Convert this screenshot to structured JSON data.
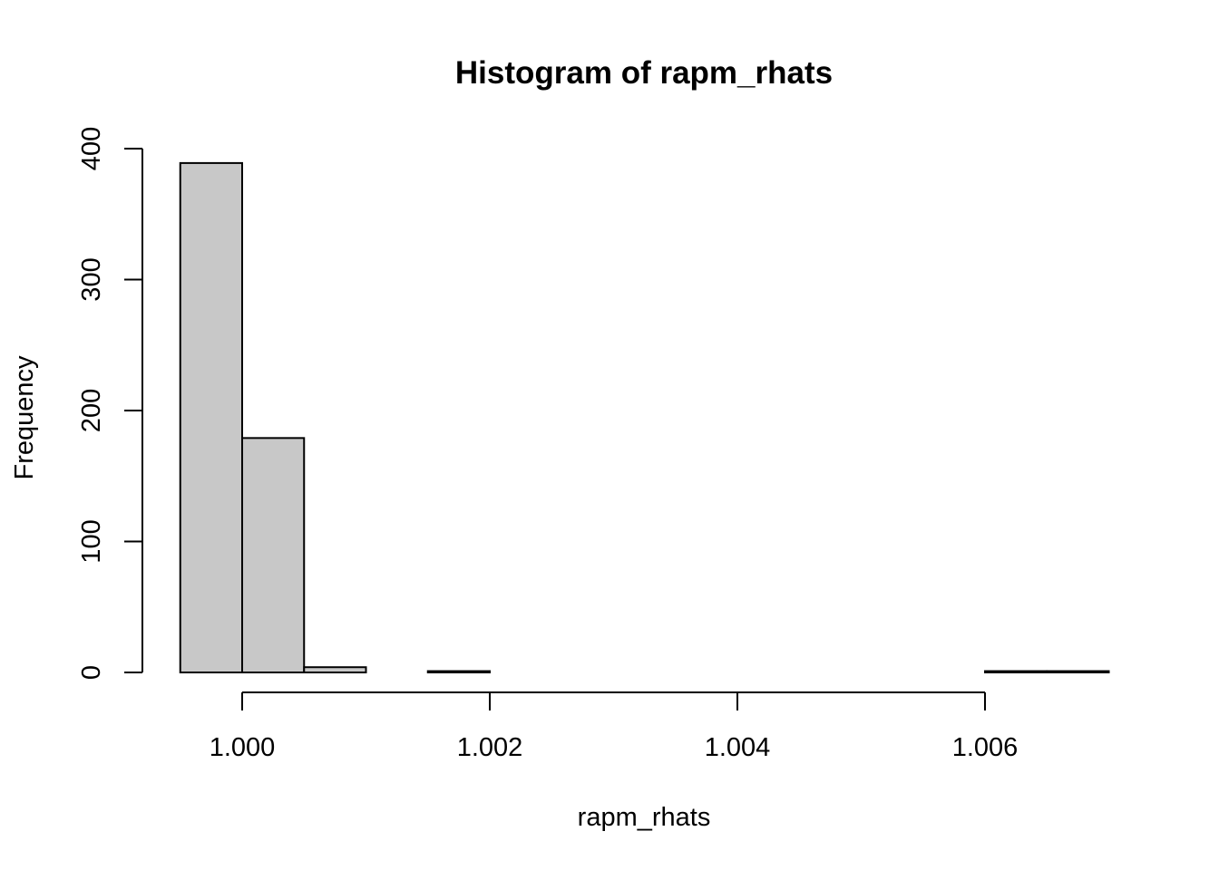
{
  "chart_data": {
    "type": "bar",
    "title": "Histogram of rapm_rhats",
    "xlabel": "rapm_rhats",
    "ylabel": "Frequency",
    "bin_width": 0.0005,
    "bins": [
      {
        "start": 0.9995,
        "end": 1.0,
        "count": 389
      },
      {
        "start": 1.0,
        "end": 1.0005,
        "count": 179
      },
      {
        "start": 1.0005,
        "end": 1.001,
        "count": 4
      },
      {
        "start": 1.001,
        "end": 1.0015,
        "count": 0
      },
      {
        "start": 1.0015,
        "end": 1.002,
        "count": 1
      },
      {
        "start": 1.002,
        "end": 1.0025,
        "count": 0
      },
      {
        "start": 1.0025,
        "end": 1.003,
        "count": 0
      },
      {
        "start": 1.003,
        "end": 1.0035,
        "count": 0
      },
      {
        "start": 1.0035,
        "end": 1.004,
        "count": 0
      },
      {
        "start": 1.004,
        "end": 1.0045,
        "count": 0
      },
      {
        "start": 1.0045,
        "end": 1.005,
        "count": 0
      },
      {
        "start": 1.005,
        "end": 1.0055,
        "count": 0
      },
      {
        "start": 1.0055,
        "end": 1.006,
        "count": 0
      },
      {
        "start": 1.006,
        "end": 1.0065,
        "count": 1
      },
      {
        "start": 1.0065,
        "end": 1.007,
        "count": 1
      }
    ],
    "xlim": [
      0.9995,
      1.007
    ],
    "ylim": [
      0,
      400
    ],
    "x_ticks": [
      1.0,
      1.002,
      1.004,
      1.006
    ],
    "x_tick_labels": [
      "1.000",
      "1.002",
      "1.004",
      "1.006"
    ],
    "y_ticks": [
      0,
      100,
      200,
      300,
      400
    ],
    "y_tick_labels": [
      "0",
      "100",
      "200",
      "300",
      "400"
    ],
    "grid": false,
    "bar_color": "#c8c8c8",
    "bar_border_color": "#000000"
  }
}
